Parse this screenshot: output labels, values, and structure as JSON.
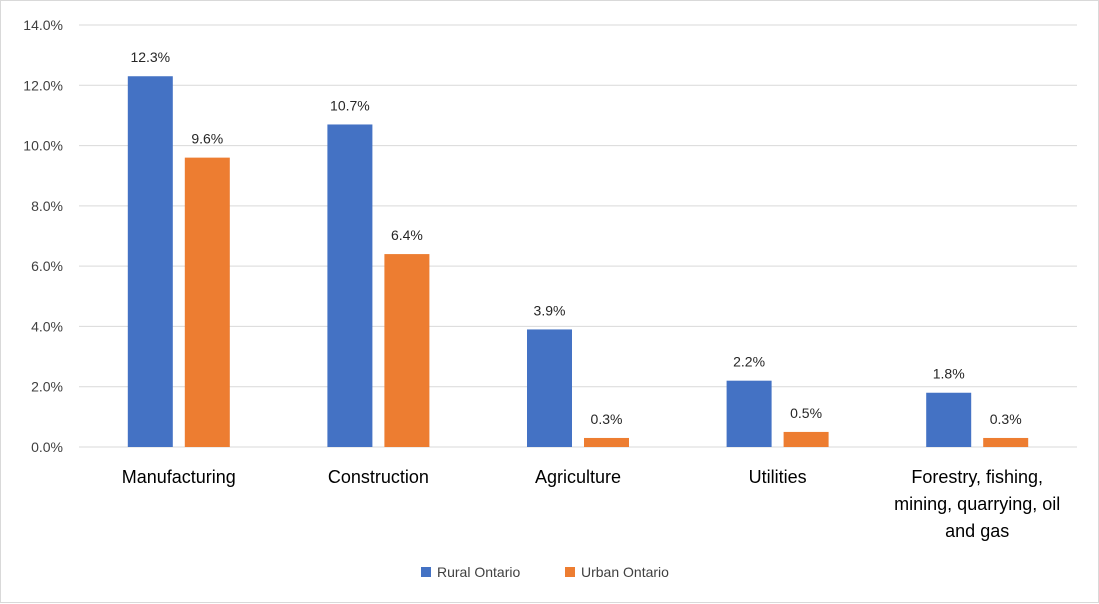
{
  "chart_data": {
    "type": "bar",
    "title": "",
    "xlabel": "",
    "ylabel": "",
    "ylim": [
      0,
      14
    ],
    "yticks": [
      "0.0%",
      "2.0%",
      "4.0%",
      "6.0%",
      "8.0%",
      "10.0%",
      "12.0%",
      "14.0%"
    ],
    "grid": true,
    "legend_position": "bottom",
    "categories": [
      [
        "Manufacturing"
      ],
      [
        "Construction"
      ],
      [
        "Agriculture"
      ],
      [
        "Utilities"
      ],
      [
        "Forestry, fishing,",
        "mining, quarrying, oil",
        "and gas"
      ]
    ],
    "series": [
      {
        "name": "Rural Ontario",
        "color": "#4472C4",
        "values": [
          12.3,
          10.7,
          3.9,
          2.2,
          1.8
        ],
        "labels": [
          "12.3%",
          "10.7%",
          "3.9%",
          "2.2%",
          "1.8%"
        ]
      },
      {
        "name": "Urban Ontario",
        "color": "#ED7D31",
        "values": [
          9.6,
          6.4,
          0.3,
          0.5,
          0.3
        ],
        "labels": [
          "9.6%",
          "6.4%",
          "0.3%",
          "0.5%",
          "0.3%"
        ]
      }
    ]
  }
}
